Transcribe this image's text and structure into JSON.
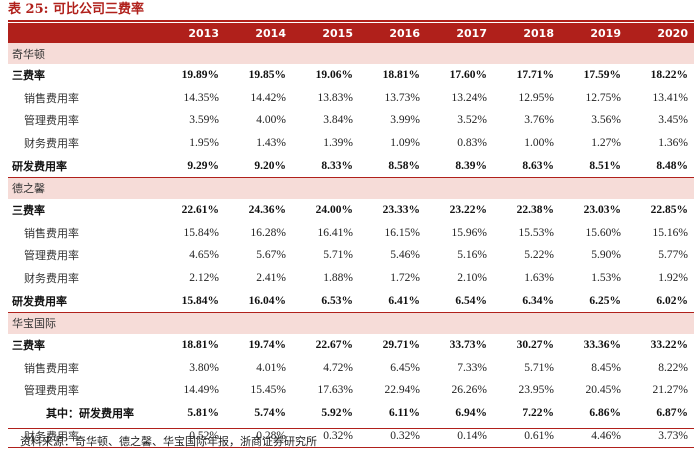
{
  "title": "表 25: 可比公司三费率",
  "years": [
    "2013",
    "2014",
    "2015",
    "2016",
    "2017",
    "2018",
    "2019",
    "2020"
  ],
  "sections": [
    {
      "company": "奇华顿",
      "rows": [
        {
          "label": "三费率",
          "bold": true,
          "indent": false,
          "values": [
            "19.89%",
            "19.85%",
            "19.06%",
            "18.81%",
            "17.60%",
            "17.71%",
            "17.59%",
            "18.22%"
          ]
        },
        {
          "label": "销售费用率",
          "bold": false,
          "indent": true,
          "values": [
            "14.35%",
            "14.42%",
            "13.83%",
            "13.73%",
            "13.24%",
            "12.95%",
            "12.75%",
            "13.41%"
          ]
        },
        {
          "label": "管理费用率",
          "bold": false,
          "indent": true,
          "values": [
            "3.59%",
            "4.00%",
            "3.84%",
            "3.99%",
            "3.52%",
            "3.76%",
            "3.56%",
            "3.45%"
          ]
        },
        {
          "label": "财务费用率",
          "bold": false,
          "indent": true,
          "values": [
            "1.95%",
            "1.43%",
            "1.39%",
            "1.09%",
            "0.83%",
            "1.00%",
            "1.27%",
            "1.36%"
          ]
        },
        {
          "label": "研发费用率",
          "bold": true,
          "indent": false,
          "values": [
            "9.29%",
            "9.20%",
            "8.33%",
            "8.58%",
            "8.39%",
            "8.63%",
            "8.51%",
            "8.48%"
          ]
        }
      ]
    },
    {
      "company": "德之馨",
      "rows": [
        {
          "label": "三费率",
          "bold": true,
          "indent": false,
          "values": [
            "22.61%",
            "24.36%",
            "24.00%",
            "23.33%",
            "23.22%",
            "22.38%",
            "23.03%",
            "22.85%"
          ]
        },
        {
          "label": "销售费用率",
          "bold": false,
          "indent": true,
          "values": [
            "15.84%",
            "16.28%",
            "16.41%",
            "16.15%",
            "15.96%",
            "15.53%",
            "15.60%",
            "15.16%"
          ]
        },
        {
          "label": "管理费用率",
          "bold": false,
          "indent": true,
          "values": [
            "4.65%",
            "5.67%",
            "5.71%",
            "5.46%",
            "5.16%",
            "5.22%",
            "5.90%",
            "5.77%"
          ]
        },
        {
          "label": "财务费用率",
          "bold": false,
          "indent": true,
          "values": [
            "2.12%",
            "2.41%",
            "1.88%",
            "1.72%",
            "2.10%",
            "1.63%",
            "1.53%",
            "1.92%"
          ]
        },
        {
          "label": "研发费用率",
          "bold": true,
          "indent": false,
          "values": [
            "15.84%",
            "16.04%",
            "6.53%",
            "6.41%",
            "6.54%",
            "6.34%",
            "6.25%",
            "6.02%"
          ]
        }
      ]
    },
    {
      "company": "华宝国际",
      "rows": [
        {
          "label": "三费率",
          "bold": true,
          "indent": false,
          "values": [
            "18.81%",
            "19.74%",
            "22.67%",
            "29.71%",
            "33.73%",
            "30.27%",
            "33.36%",
            "33.22%"
          ]
        },
        {
          "label": "销售费用率",
          "bold": false,
          "indent": true,
          "values": [
            "3.80%",
            "4.01%",
            "4.72%",
            "6.45%",
            "7.33%",
            "5.71%",
            "8.45%",
            "8.22%"
          ]
        },
        {
          "label": "管理费用率",
          "bold": false,
          "indent": true,
          "values": [
            "14.49%",
            "15.45%",
            "17.63%",
            "22.94%",
            "26.26%",
            "23.95%",
            "20.45%",
            "21.27%"
          ]
        },
        {
          "label": "其中：研发费用率",
          "bold": true,
          "indent": false,
          "sub": true,
          "values": [
            "5.81%",
            "5.74%",
            "5.92%",
            "6.11%",
            "6.94%",
            "7.22%",
            "6.86%",
            "6.87%"
          ]
        },
        {
          "label": "财务费用率",
          "bold": false,
          "indent": true,
          "values": [
            "0.52%",
            "0.28%",
            "0.32%",
            "0.32%",
            "0.14%",
            "0.61%",
            "4.46%",
            "3.73%"
          ]
        }
      ]
    }
  ],
  "source": "资料来源：奇华顿、德之馨、华宝国际年报，浙商证券研究所"
}
